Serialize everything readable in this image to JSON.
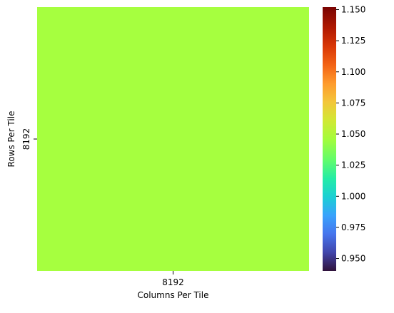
{
  "chart_data": {
    "type": "heatmap",
    "title": "",
    "xlabel": "Columns Per Tile",
    "ylabel": "Rows Per Tile",
    "x_categories": [
      "8192"
    ],
    "y_categories": [
      "8192"
    ],
    "values": [
      [
        1.05
      ]
    ],
    "cell_color": "#a6ff3f",
    "colorbar": {
      "colormap": "turbo",
      "vmin": 0.94,
      "vmax": 1.152,
      "ticks": [
        "0.950",
        "0.975",
        "1.000",
        "1.025",
        "1.050",
        "1.075",
        "1.100",
        "1.125",
        "1.150"
      ],
      "tick_values": [
        0.95,
        0.975,
        1.0,
        1.025,
        1.05,
        1.075,
        1.1,
        1.125,
        1.15
      ]
    }
  }
}
